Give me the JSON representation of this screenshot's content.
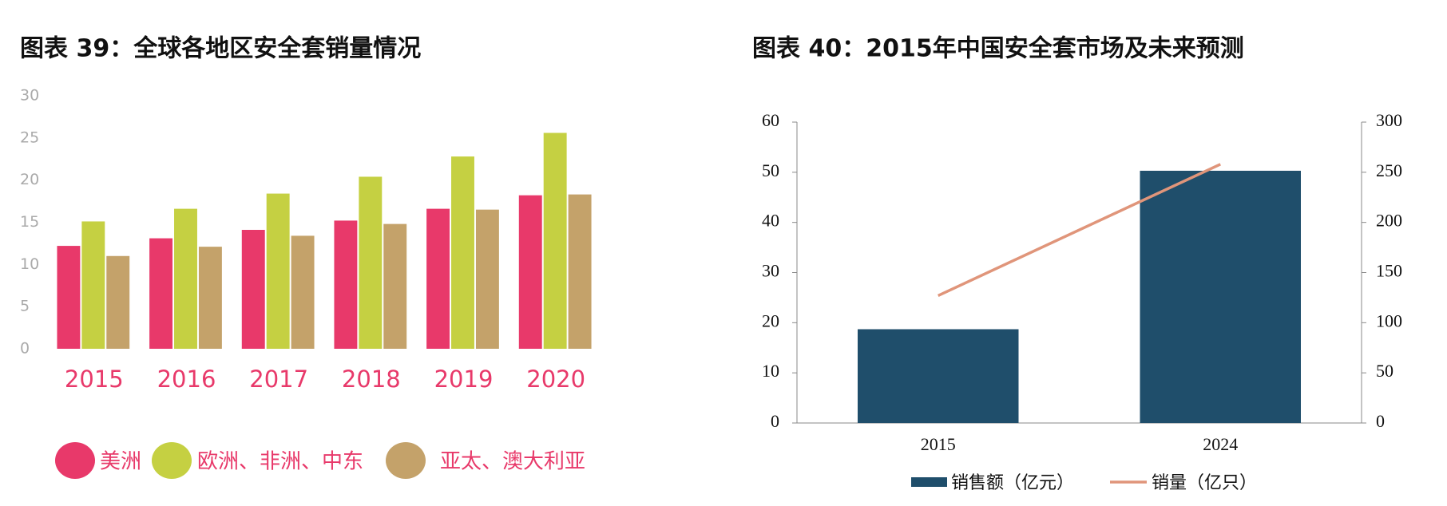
{
  "chart_data": [
    {
      "type": "bar",
      "title": "图表 39：全球各地区安全套销量情况",
      "categories": [
        "2015",
        "2016",
        "2017",
        "2018",
        "2019",
        "2020"
      ],
      "series": [
        {
          "name": "美洲",
          "color": "#e8396a",
          "values": [
            12.2,
            13.1,
            14.1,
            15.2,
            16.6,
            18.2
          ]
        },
        {
          "name": "欧洲、非洲、中东",
          "color": "#c5d042",
          "values": [
            15.1,
            16.6,
            18.4,
            20.4,
            22.8,
            25.6
          ]
        },
        {
          "name": "亚太、澳大利亚",
          "color": "#c4a26a",
          "values": [
            11.0,
            12.1,
            13.4,
            14.8,
            16.5,
            18.3
          ]
        }
      ],
      "ylim": [
        0,
        30
      ],
      "yticks": [
        0,
        5,
        10,
        15,
        20,
        25,
        30
      ],
      "grid": false
    },
    {
      "type": "combo",
      "title": "图表 40：2015年中国安全套市场及未来预测",
      "categories": [
        "2015",
        "2024"
      ],
      "series": [
        {
          "name": "销售额（亿元）",
          "color": "#1f4e6b",
          "kind": "bar",
          "values": [
            18.7,
            50.3
          ]
        },
        {
          "name": "销量（亿只）",
          "color": "#e0957a",
          "kind": "line",
          "axis": "y2",
          "values": [
            127,
            258
          ]
        }
      ],
      "ylim": [
        0,
        60
      ],
      "yticks": [
        0,
        10,
        20,
        30,
        40,
        50,
        60
      ],
      "y2lim": [
        0,
        300
      ],
      "y2ticks": [
        0,
        50,
        100,
        150,
        200,
        250,
        300
      ],
      "grid": false
    }
  ]
}
